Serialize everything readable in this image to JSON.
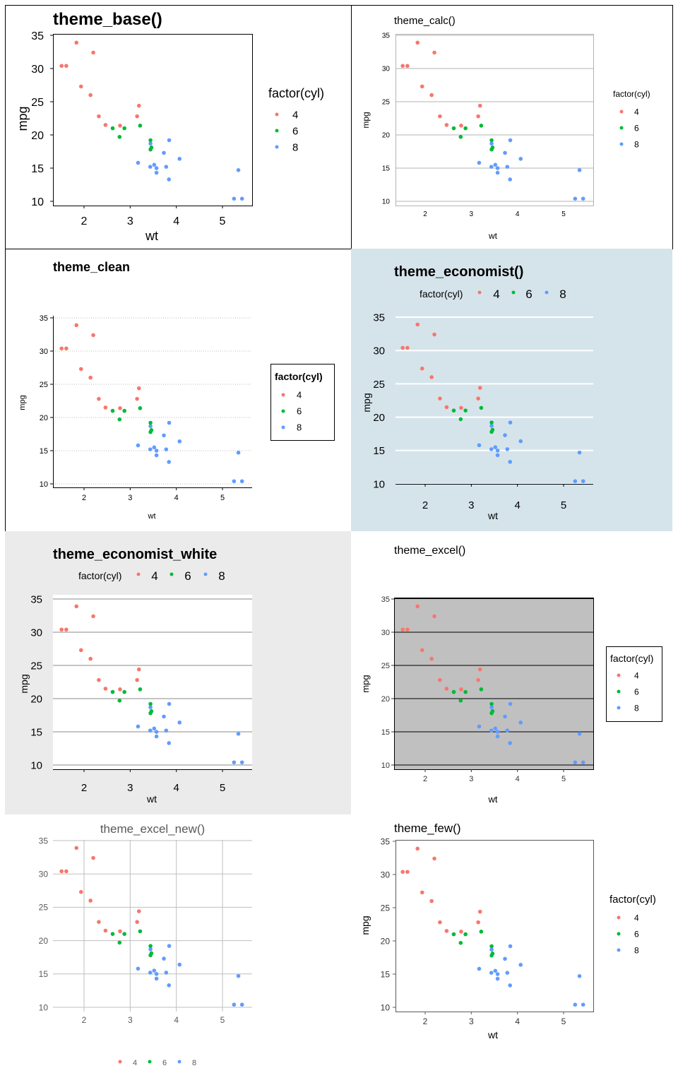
{
  "chart_data": {
    "type": "scatter",
    "x_variable": "wt",
    "y_variable": "mpg",
    "color_variable": "factor(cyl)",
    "xlim": [
      1.5,
      5.5
    ],
    "ylim": [
      10,
      35
    ],
    "x_ticks": [
      "2",
      "3",
      "4",
      "5"
    ],
    "y_ticks": [
      "35",
      "30",
      "25",
      "20",
      "15",
      "10"
    ],
    "categories": [
      "4",
      "6",
      "8"
    ],
    "colors": {
      "4": "#F8766D",
      "6": "#00BA38",
      "8": "#619CFF"
    },
    "points": {
      "wt": [
        2.62,
        2.875,
        2.32,
        3.215,
        3.44,
        3.46,
        3.57,
        3.19,
        3.15,
        3.44,
        3.44,
        4.07,
        3.73,
        3.78,
        5.25,
        5.424,
        5.345,
        2.2,
        1.615,
        1.835,
        2.465,
        3.52,
        3.435,
        3.84,
        3.845,
        1.935,
        2.14,
        1.513,
        3.17,
        2.77,
        3.57,
        2.78
      ],
      "mpg": [
        21.0,
        21.0,
        22.8,
        21.4,
        18.7,
        18.1,
        14.3,
        24.4,
        22.8,
        19.2,
        17.8,
        16.4,
        17.3,
        15.2,
        10.4,
        10.4,
        14.7,
        32.4,
        30.4,
        33.9,
        21.5,
        15.5,
        15.2,
        13.3,
        19.2,
        27.3,
        26.0,
        30.4,
        15.8,
        19.7,
        15.0,
        21.4
      ],
      "cyl": [
        "6",
        "6",
        "4",
        "6",
        "8",
        "6",
        "8",
        "4",
        "4",
        "6",
        "6",
        "8",
        "8",
        "8",
        "8",
        "8",
        "8",
        "4",
        "4",
        "4",
        "4",
        "8",
        "8",
        "8",
        "8",
        "4",
        "4",
        "4",
        "8",
        "6",
        "8",
        "4"
      ]
    },
    "panels": [
      {
        "title": "theme_base()",
        "xlabel": "wt",
        "ylabel": "mpg",
        "legend_title": "factor(cyl)",
        "legend": "right",
        "grid": "none"
      },
      {
        "title": "theme_calc()",
        "xlabel": "wt",
        "ylabel": "mpg",
        "legend_title": "factor(cyl)",
        "legend": "right",
        "grid": "horizontal"
      },
      {
        "title": "theme_clean",
        "xlabel": "wt",
        "ylabel": "mpg",
        "legend_title": "factor(cyl)",
        "legend": "right",
        "grid": "horizontal-dotted"
      },
      {
        "title": "theme_economist()",
        "xlabel": "wt",
        "ylabel": "mpg",
        "legend_title": "factor(cyl)",
        "legend": "top",
        "grid": "horizontal",
        "background": "#d5e4eb"
      },
      {
        "title": "theme_economist_white",
        "xlabel": "wt",
        "ylabel": "mpg",
        "legend_title": "factor(cyl)",
        "legend": "top",
        "grid": "horizontal",
        "background": "#ebebeb"
      },
      {
        "title": "theme_excel()",
        "xlabel": "wt",
        "ylabel": "mpg",
        "legend_title": "factor(cyl)",
        "legend": "right",
        "grid": "horizontal",
        "background": "#c0c0c0"
      },
      {
        "title": "theme_excel_new()",
        "xlabel": "",
        "ylabel": "",
        "legend_title": "",
        "legend": "bottom",
        "grid": "both"
      },
      {
        "title": "theme_few()",
        "xlabel": "wt",
        "ylabel": "mpg",
        "legend_title": "factor(cyl)",
        "legend": "right",
        "grid": "none"
      }
    ]
  }
}
